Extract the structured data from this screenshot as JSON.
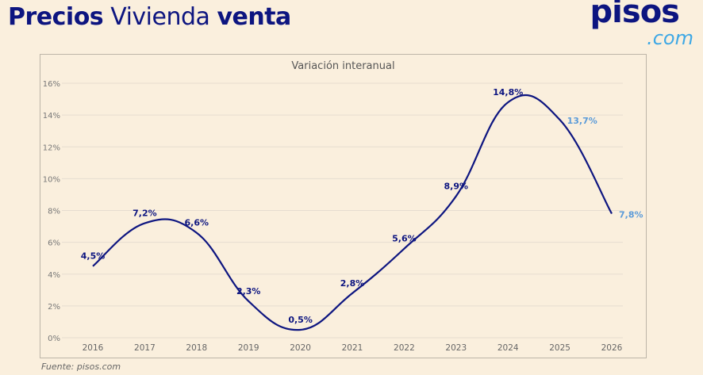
{
  "header": {
    "title_part1": "Precios",
    "title_part2": "Vivienda",
    "title_part3": "venta"
  },
  "logo": {
    "text_main": "pisos",
    "text_suffix": ".com"
  },
  "source": "Fuente: pisos.com",
  "colors": {
    "background": "#FAEFDD",
    "line": "#0D1580",
    "label_dark": "#0D1580",
    "label_forecast": "#5B9BD9"
  },
  "chart_data": {
    "type": "line",
    "title": "Variación interanual",
    "categories": [
      "2016",
      "2017",
      "2018",
      "2019",
      "2020",
      "2021",
      "2022",
      "2023",
      "2024",
      "2025",
      "2026"
    ],
    "values": [
      4.5,
      7.2,
      6.6,
      2.3,
      0.5,
      2.8,
      5.6,
      8.9,
      14.8,
      13.7,
      7.8
    ],
    "data_labels": [
      "4,5%",
      "7,2%",
      "6,6%",
      "2,3%",
      "0,5%",
      "2,8%",
      "5,6%",
      "8,9%",
      "14,8%",
      "13,7%",
      "7,8%"
    ],
    "forecast_from": "2025",
    "ylim": [
      0,
      16
    ],
    "yticks": [
      0,
      2,
      4,
      6,
      8,
      10,
      12,
      14,
      16
    ],
    "ytick_labels": [
      "0%",
      "2%",
      "4%",
      "6%",
      "8%",
      "10%",
      "12%",
      "14%",
      "16%"
    ],
    "grid": true,
    "smooth": true
  }
}
